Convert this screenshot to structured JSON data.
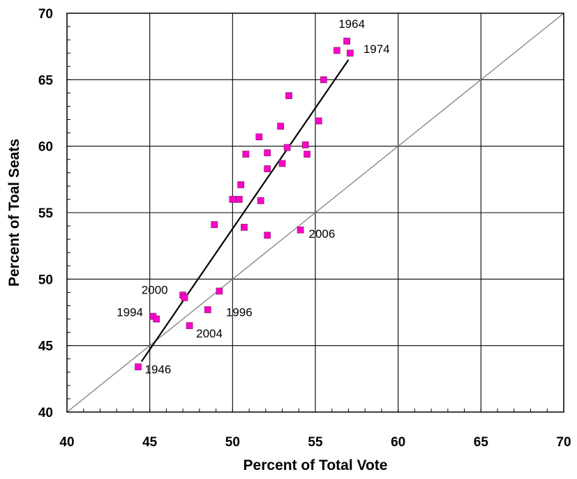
{
  "chart_data": {
    "type": "scatter",
    "title": "",
    "xlabel": "Percent of Total Vote",
    "ylabel": "Percent of Toal Seats",
    "xlim": [
      40,
      70
    ],
    "ylim": [
      40,
      70
    ],
    "x_ticks": [
      40,
      45,
      50,
      55,
      60,
      65,
      70
    ],
    "y_ticks": [
      40,
      45,
      50,
      55,
      60,
      65,
      70
    ],
    "grid": true,
    "marker_color": "#ff00cc",
    "marker_edge_color": "#8a2a6a",
    "points": [
      {
        "x": 44.3,
        "y": 43.4
      },
      {
        "x": 45.2,
        "y": 47.2
      },
      {
        "x": 45.4,
        "y": 47.0
      },
      {
        "x": 47.0,
        "y": 48.8
      },
      {
        "x": 47.1,
        "y": 48.6
      },
      {
        "x": 47.4,
        "y": 46.5
      },
      {
        "x": 48.5,
        "y": 47.7
      },
      {
        "x": 49.2,
        "y": 49.1
      },
      {
        "x": 48.9,
        "y": 54.1
      },
      {
        "x": 50.0,
        "y": 56.0
      },
      {
        "x": 50.4,
        "y": 56.0
      },
      {
        "x": 50.5,
        "y": 57.1
      },
      {
        "x": 50.7,
        "y": 53.9
      },
      {
        "x": 50.8,
        "y": 59.4
      },
      {
        "x": 51.6,
        "y": 60.7
      },
      {
        "x": 51.7,
        "y": 55.9
      },
      {
        "x": 52.1,
        "y": 59.5
      },
      {
        "x": 52.1,
        "y": 58.3
      },
      {
        "x": 52.1,
        "y": 53.3
      },
      {
        "x": 52.9,
        "y": 61.5
      },
      {
        "x": 53.0,
        "y": 58.7
      },
      {
        "x": 53.3,
        "y": 59.9
      },
      {
        "x": 53.4,
        "y": 63.8
      },
      {
        "x": 54.1,
        "y": 53.7
      },
      {
        "x": 54.4,
        "y": 60.1
      },
      {
        "x": 54.5,
        "y": 59.4
      },
      {
        "x": 55.2,
        "y": 61.9
      },
      {
        "x": 55.5,
        "y": 65.0
      },
      {
        "x": 56.3,
        "y": 67.2
      },
      {
        "x": 56.9,
        "y": 67.9
      },
      {
        "x": 57.1,
        "y": 67.0
      }
    ],
    "reference_line": {
      "from": [
        40,
        40
      ],
      "to": [
        70,
        70
      ]
    },
    "fit_line": {
      "from": [
        44.5,
        43.8
      ],
      "to": [
        57.0,
        66.5
      ]
    },
    "annotations": [
      {
        "text": "1964",
        "x": 56.4,
        "y": 68.9
      },
      {
        "text": "1974",
        "x": 57.9,
        "y": 67.0
      },
      {
        "text": "2006",
        "x": 54.6,
        "y": 53.1
      },
      {
        "text": "2000",
        "x": 44.5,
        "y": 48.9
      },
      {
        "text": "1994",
        "x": 43.0,
        "y": 47.2
      },
      {
        "text": "1996",
        "x": 49.6,
        "y": 47.2
      },
      {
        "text": "2004",
        "x": 47.8,
        "y": 45.6
      },
      {
        "text": "1946",
        "x": 44.7,
        "y": 42.9
      }
    ]
  }
}
